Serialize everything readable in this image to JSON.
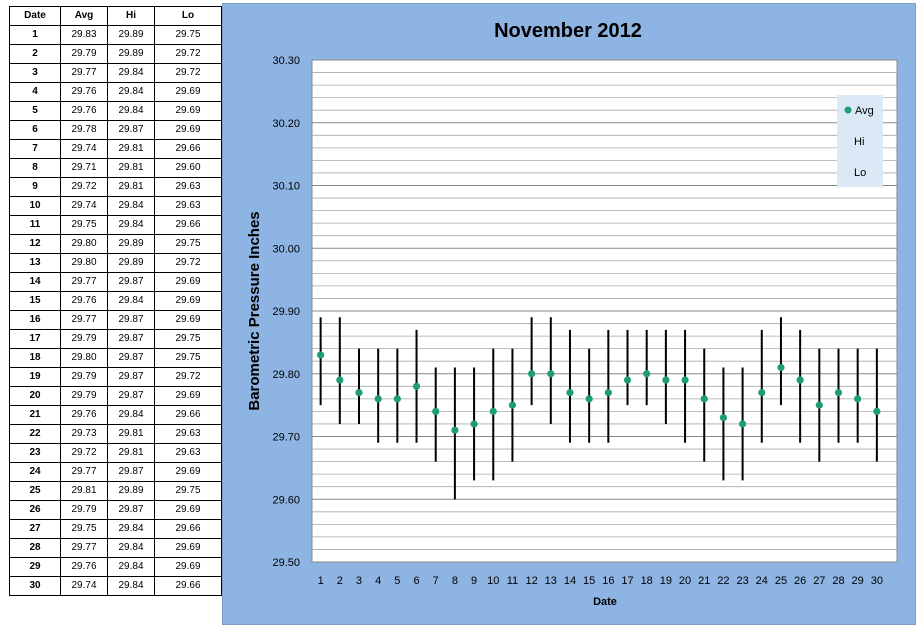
{
  "table": {
    "headers": [
      "Date",
      "Avg",
      "Hi",
      "Lo"
    ],
    "rows": [
      [
        "1",
        "29.83",
        "29.89",
        "29.75"
      ],
      [
        "2",
        "29.79",
        "29.89",
        "29.72"
      ],
      [
        "3",
        "29.77",
        "29.84",
        "29.72"
      ],
      [
        "4",
        "29.76",
        "29.84",
        "29.69"
      ],
      [
        "5",
        "29.76",
        "29.84",
        "29.69"
      ],
      [
        "6",
        "29.78",
        "29.87",
        "29.69"
      ],
      [
        "7",
        "29.74",
        "29.81",
        "29.66"
      ],
      [
        "8",
        "29.71",
        "29.81",
        "29.60"
      ],
      [
        "9",
        "29.72",
        "29.81",
        "29.63"
      ],
      [
        "10",
        "29.74",
        "29.84",
        "29.63"
      ],
      [
        "11",
        "29.75",
        "29.84",
        "29.66"
      ],
      [
        "12",
        "29.80",
        "29.89",
        "29.75"
      ],
      [
        "13",
        "29.80",
        "29.89",
        "29.72"
      ],
      [
        "14",
        "29.77",
        "29.87",
        "29.69"
      ],
      [
        "15",
        "29.76",
        "29.84",
        "29.69"
      ],
      [
        "16",
        "29.77",
        "29.87",
        "29.69"
      ],
      [
        "17",
        "29.79",
        "29.87",
        "29.75"
      ],
      [
        "18",
        "29.80",
        "29.87",
        "29.75"
      ],
      [
        "19",
        "29.79",
        "29.87",
        "29.72"
      ],
      [
        "20",
        "29.79",
        "29.87",
        "29.69"
      ],
      [
        "21",
        "29.76",
        "29.84",
        "29.66"
      ],
      [
        "22",
        "29.73",
        "29.81",
        "29.63"
      ],
      [
        "23",
        "29.72",
        "29.81",
        "29.63"
      ],
      [
        "24",
        "29.77",
        "29.87",
        "29.69"
      ],
      [
        "25",
        "29.81",
        "29.89",
        "29.75"
      ],
      [
        "26",
        "29.79",
        "29.87",
        "29.69"
      ],
      [
        "27",
        "29.75",
        "29.84",
        "29.66"
      ],
      [
        "28",
        "29.77",
        "29.84",
        "29.69"
      ],
      [
        "29",
        "29.76",
        "29.84",
        "29.69"
      ],
      [
        "30",
        "29.74",
        "29.84",
        "29.66"
      ]
    ]
  },
  "chart_data": {
    "type": "scatter",
    "title": "November 2012",
    "xlabel": "Date",
    "ylabel": "Barometric Pressure Inches",
    "ylim": [
      29.5,
      30.3
    ],
    "y_ticks": [
      "29.50",
      "29.60",
      "29.70",
      "29.80",
      "29.90",
      "30.00",
      "30.10",
      "30.20",
      "30.30"
    ],
    "x": [
      1,
      2,
      3,
      4,
      5,
      6,
      7,
      8,
      9,
      10,
      11,
      12,
      13,
      14,
      15,
      16,
      17,
      18,
      19,
      20,
      21,
      22,
      23,
      24,
      25,
      26,
      27,
      28,
      29,
      30
    ],
    "series": [
      {
        "name": "Avg",
        "values": [
          29.83,
          29.79,
          29.77,
          29.76,
          29.76,
          29.78,
          29.74,
          29.71,
          29.72,
          29.74,
          29.75,
          29.8,
          29.8,
          29.77,
          29.76,
          29.77,
          29.79,
          29.8,
          29.79,
          29.79,
          29.76,
          29.73,
          29.72,
          29.77,
          29.81,
          29.79,
          29.75,
          29.77,
          29.76,
          29.74
        ]
      },
      {
        "name": "Hi",
        "values": [
          29.89,
          29.89,
          29.84,
          29.84,
          29.84,
          29.87,
          29.81,
          29.81,
          29.81,
          29.84,
          29.84,
          29.89,
          29.89,
          29.87,
          29.84,
          29.87,
          29.87,
          29.87,
          29.87,
          29.87,
          29.84,
          29.81,
          29.81,
          29.87,
          29.89,
          29.87,
          29.84,
          29.84,
          29.84,
          29.84
        ]
      },
      {
        "name": "Lo",
        "values": [
          29.75,
          29.72,
          29.72,
          29.69,
          29.69,
          29.69,
          29.66,
          29.6,
          29.63,
          29.63,
          29.66,
          29.75,
          29.72,
          29.69,
          29.69,
          29.69,
          29.75,
          29.75,
          29.72,
          29.69,
          29.66,
          29.63,
          29.63,
          29.69,
          29.75,
          29.69,
          29.66,
          29.69,
          29.69,
          29.66
        ]
      }
    ],
    "legend": [
      "Avg",
      "Hi",
      "Lo"
    ],
    "legend_position": "right",
    "grid": true,
    "colors": {
      "avg_marker": "#1e9e6e",
      "range_line": "#000000",
      "background": "#8eb4e3",
      "plot_area": "#ffffff",
      "grid": "#999999",
      "legend_bg": "#dbe8f5"
    }
  }
}
